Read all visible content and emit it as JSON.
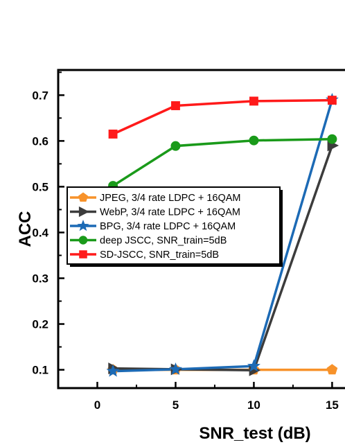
{
  "chart_data": {
    "type": "line",
    "xlabel": "SNR_test (dB)",
    "ylabel": "ACC",
    "xlim": [
      -2.5,
      16
    ],
    "ylim": [
      0.06,
      0.755
    ],
    "xticks": [
      0,
      5,
      10,
      15
    ],
    "yticks": [
      0.1,
      0.2,
      0.3,
      0.4,
      0.5,
      0.6,
      0.7
    ],
    "ytick_labels": [
      "0.1",
      "0.2",
      "0.3",
      "0.4",
      "0.5",
      "0.6",
      "0.7"
    ],
    "grid": false,
    "legend_position": "center-left",
    "series": [
      {
        "name": "JPEG, 3/4 rate LDPC + 16QAM",
        "color": "#F7922A",
        "marker": "pentagon",
        "x": [
          1,
          5,
          10,
          15
        ],
        "y": [
          0.1,
          0.1,
          0.1,
          0.1
        ]
      },
      {
        "name": "WebP, 3/4 rate LDPC + 16QAM",
        "color": "#3C3C3C",
        "marker": "triangle-right",
        "x": [
          1,
          5,
          10,
          15
        ],
        "y": [
          0.103,
          0.101,
          0.099,
          0.59
        ]
      },
      {
        "name": "BPG, 3/4 rate LDPC + 16QAM",
        "color": "#1C6AB5",
        "marker": "star",
        "x": [
          1,
          5,
          10,
          15
        ],
        "y": [
          0.097,
          0.101,
          0.108,
          0.69
        ]
      },
      {
        "name": "deep JSCC, SNR_train=5dB",
        "color": "#1A9A1A",
        "marker": "circle",
        "x": [
          1,
          5,
          10,
          15
        ],
        "y": [
          0.502,
          0.589,
          0.601,
          0.604
        ]
      },
      {
        "name": "SD-JSCC, SNR_train=5dB",
        "color": "#FF1A1A",
        "marker": "square",
        "x": [
          1,
          5,
          10,
          15
        ],
        "y": [
          0.615,
          0.677,
          0.687,
          0.689
        ]
      }
    ]
  }
}
